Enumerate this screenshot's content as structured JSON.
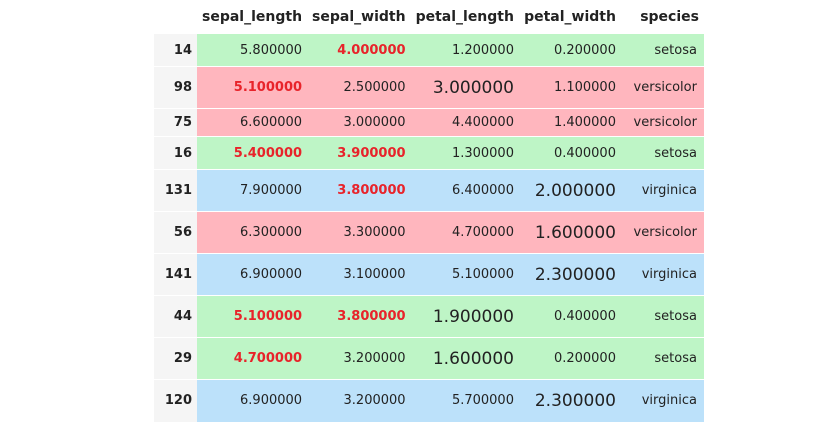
{
  "table": {
    "columns": [
      "sepal_length",
      "sepal_width",
      "petal_length",
      "petal_width",
      "species"
    ],
    "rows": [
      {
        "index": "14",
        "sepal_length": "5.800000",
        "sepal_width": "4.000000",
        "petal_length": "1.200000",
        "petal_width": "0.200000",
        "species": "setosa"
      },
      {
        "index": "98",
        "sepal_length": "5.100000",
        "sepal_width": "2.500000",
        "petal_length": "3.000000",
        "petal_width": "1.100000",
        "species": "versicolor"
      },
      {
        "index": "75",
        "sepal_length": "6.600000",
        "sepal_width": "3.000000",
        "petal_length": "4.400000",
        "petal_width": "1.400000",
        "species": "versicolor"
      },
      {
        "index": "16",
        "sepal_length": "5.400000",
        "sepal_width": "3.900000",
        "petal_length": "1.300000",
        "petal_width": "0.400000",
        "species": "setosa"
      },
      {
        "index": "131",
        "sepal_length": "7.900000",
        "sepal_width": "3.800000",
        "petal_length": "6.400000",
        "petal_width": "2.000000",
        "species": "virginica"
      },
      {
        "index": "56",
        "sepal_length": "6.300000",
        "sepal_width": "3.300000",
        "petal_length": "4.700000",
        "petal_width": "1.600000",
        "species": "versicolor"
      },
      {
        "index": "141",
        "sepal_length": "6.900000",
        "sepal_width": "3.100000",
        "petal_length": "5.100000",
        "petal_width": "2.300000",
        "species": "virginica"
      },
      {
        "index": "44",
        "sepal_length": "5.100000",
        "sepal_width": "3.800000",
        "petal_length": "1.900000",
        "petal_width": "0.400000",
        "species": "setosa"
      },
      {
        "index": "29",
        "sepal_length": "4.700000",
        "sepal_width": "3.200000",
        "petal_length": "1.600000",
        "petal_width": "0.200000",
        "species": "setosa"
      },
      {
        "index": "120",
        "sepal_length": "6.900000",
        "sepal_width": "3.200000",
        "petal_length": "5.700000",
        "petal_width": "2.300000",
        "species": "virginica"
      }
    ]
  },
  "colors": {
    "setosa_background": "#bef5c6",
    "versicolor_background": "#ffb6be",
    "virginica_background": "#bce1fa",
    "highlight_text": "#e8232a"
  }
}
